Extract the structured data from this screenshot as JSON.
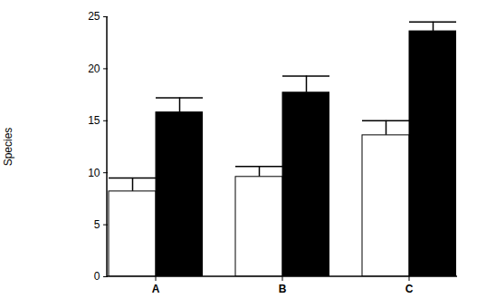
{
  "chart_data": {
    "type": "bar",
    "y_label": "Species",
    "categories": [
      "A",
      "B",
      "C"
    ],
    "series": [
      {
        "color": "#ffffff",
        "values": [
          8.2,
          9.6,
          13.6
        ],
        "errors": [
          1.3,
          1.0,
          1.4
        ]
      },
      {
        "color": "#000000",
        "values": [
          15.8,
          17.7,
          23.6
        ],
        "errors": [
          1.4,
          1.6,
          0.9
        ]
      }
    ],
    "ylim": [
      0,
      25
    ],
    "yticks": [
      0,
      5,
      10,
      15,
      20,
      25
    ],
    "grid": false
  }
}
